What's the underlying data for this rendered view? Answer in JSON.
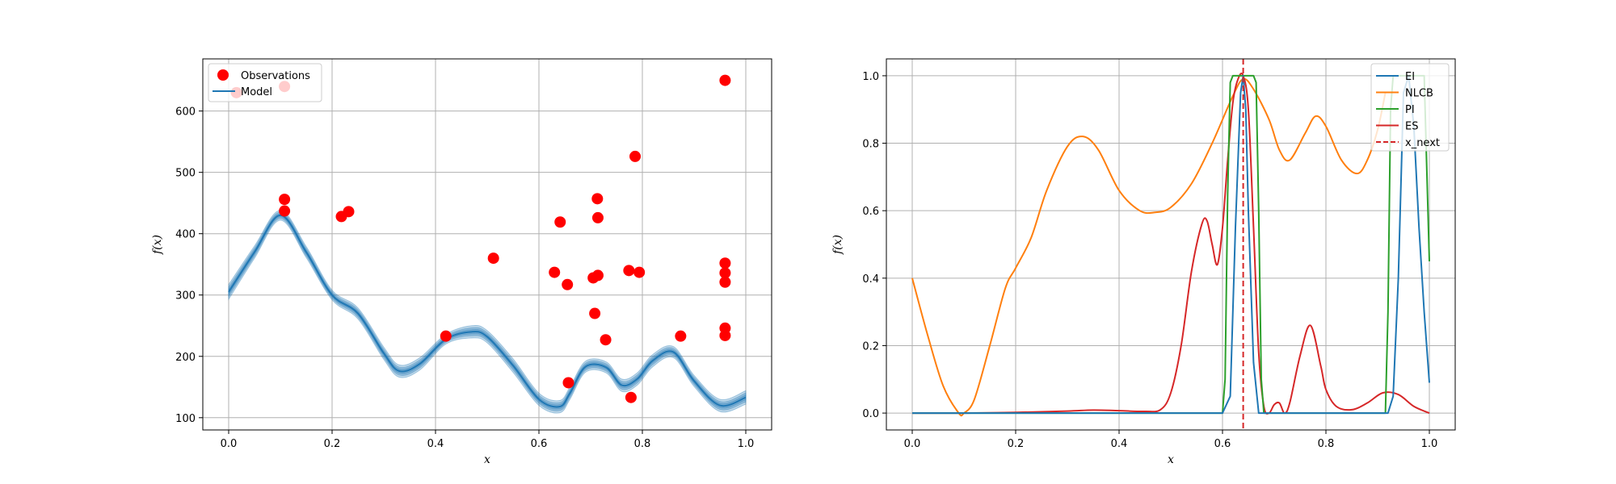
{
  "chart_data": [
    {
      "type": "scatter+line",
      "title": "",
      "xlabel": "x",
      "ylabel": "f(x)",
      "xlim": [
        -0.05,
        1.05
      ],
      "ylim": [
        80,
        685
      ],
      "xticks": [
        0.0,
        0.2,
        0.4,
        0.6,
        0.8,
        1.0
      ],
      "xtick_labels": [
        "0.0",
        "0.2",
        "0.4",
        "0.6",
        "0.8",
        "1.0"
      ],
      "yticks": [
        100,
        200,
        300,
        400,
        500,
        600
      ],
      "ytick_labels": [
        "100",
        "200",
        "300",
        "400",
        "500",
        "600"
      ],
      "grid": true,
      "legend_position": "upper-left",
      "colors": {
        "observations": "#ff0000",
        "model": "#1f77b4",
        "band": "#1f77b4"
      },
      "observations": {
        "name": "Observations",
        "x": [
          0.015,
          0.108,
          0.108,
          0.108,
          0.218,
          0.232,
          0.42,
          0.512,
          0.63,
          0.641,
          0.655,
          0.657,
          0.705,
          0.708,
          0.713,
          0.714,
          0.714,
          0.729,
          0.774,
          0.778,
          0.786,
          0.794,
          0.874,
          0.96,
          0.96,
          0.96,
          0.96,
          0.96,
          0.96
        ],
        "y": [
          630,
          640,
          456,
          437,
          428,
          436,
          233,
          360,
          337,
          419,
          317,
          157,
          328,
          270,
          457,
          332,
          426,
          227,
          340,
          133,
          526,
          337,
          233,
          352,
          336,
          321,
          246,
          234,
          650
        ]
      },
      "model": {
        "name": "Model",
        "x": [
          0.0,
          0.05,
          0.1,
          0.15,
          0.2,
          0.25,
          0.3,
          0.33,
          0.37,
          0.42,
          0.47,
          0.5,
          0.55,
          0.6,
          0.64,
          0.66,
          0.69,
          0.73,
          0.76,
          0.79,
          0.82,
          0.86,
          0.9,
          0.95,
          1.0
        ],
        "y": [
          305,
          370,
          430,
          370,
          300,
          270,
          205,
          176,
          188,
          228,
          240,
          232,
          185,
          130,
          118,
          140,
          183,
          182,
          153,
          163,
          193,
          207,
          160,
          120,
          133
        ],
        "band_widths": [
          12,
          10,
          8,
          9,
          8,
          9,
          10,
          10,
          10,
          8,
          10,
          10,
          11,
          10,
          10,
          10,
          9,
          9,
          10,
          10,
          10,
          9,
          9,
          10,
          11
        ]
      }
    },
    {
      "type": "line",
      "title": "",
      "xlabel": "x",
      "ylabel": "f(x)",
      "xlim": [
        -0.05,
        1.05
      ],
      "ylim": [
        -0.05,
        1.05
      ],
      "xticks": [
        0.0,
        0.2,
        0.4,
        0.6,
        0.8,
        1.0
      ],
      "xtick_labels": [
        "0.0",
        "0.2",
        "0.4",
        "0.6",
        "0.8",
        "1.0"
      ],
      "yticks": [
        0.0,
        0.2,
        0.4,
        0.6,
        0.8,
        1.0
      ],
      "ytick_labels": [
        "0.0",
        "0.2",
        "0.4",
        "0.6",
        "0.8",
        "1.0"
      ],
      "grid": true,
      "legend_position": "upper-right",
      "series": [
        {
          "name": "EI",
          "color": "#1f77b4",
          "x": [
            0.0,
            0.5,
            0.6,
            0.615,
            0.625,
            0.635,
            0.64,
            0.645,
            0.65,
            0.66,
            0.67,
            0.7,
            0.9,
            0.92,
            0.93,
            0.94,
            0.95,
            0.96,
            0.97,
            0.98,
            0.99,
            1.0
          ],
          "y": [
            0.0,
            0.0,
            0.0,
            0.05,
            0.55,
            0.95,
            1.0,
            0.9,
            0.6,
            0.15,
            0.0,
            0.0,
            0.0,
            0.0,
            0.05,
            0.4,
            0.95,
            1.0,
            0.85,
            0.55,
            0.3,
            0.09
          ]
        },
        {
          "name": "NLCB",
          "color": "#ff7f0e",
          "x": [
            0.0,
            0.03,
            0.06,
            0.09,
            0.1,
            0.12,
            0.15,
            0.18,
            0.2,
            0.23,
            0.26,
            0.3,
            0.33,
            0.36,
            0.4,
            0.44,
            0.47,
            0.5,
            0.54,
            0.58,
            0.62,
            0.64,
            0.66,
            0.69,
            0.71,
            0.73,
            0.76,
            0.78,
            0.8,
            0.83,
            0.86,
            0.88,
            0.9,
            0.915
          ],
          "y": [
            0.4,
            0.23,
            0.08,
            0.0,
            0.0,
            0.04,
            0.2,
            0.37,
            0.43,
            0.52,
            0.66,
            0.79,
            0.82,
            0.78,
            0.66,
            0.6,
            0.595,
            0.61,
            0.68,
            0.8,
            0.94,
            0.99,
            0.96,
            0.87,
            0.78,
            0.75,
            0.83,
            0.88,
            0.85,
            0.75,
            0.71,
            0.75,
            0.84,
            0.95
          ]
        },
        {
          "name": "PI",
          "color": "#2ca02c",
          "x": [
            0.0,
            0.5,
            0.6,
            0.605,
            0.61,
            0.615,
            0.62,
            0.66,
            0.665,
            0.67,
            0.675,
            0.68,
            0.9,
            0.915,
            0.92,
            0.925,
            0.93,
            0.99,
            1.0
          ],
          "y": [
            0.0,
            0.0,
            0.0,
            0.1,
            0.65,
            0.98,
            1.0,
            1.0,
            0.98,
            0.6,
            0.1,
            0.0,
            0.0,
            0.0,
            0.3,
            0.9,
            1.0,
            1.0,
            0.45
          ]
        },
        {
          "name": "ES",
          "color": "#d62728",
          "x": [
            0.0,
            0.05,
            0.1,
            0.2,
            0.3,
            0.35,
            0.4,
            0.45,
            0.48,
            0.5,
            0.52,
            0.54,
            0.56,
            0.57,
            0.58,
            0.59,
            0.6,
            0.61,
            0.62,
            0.63,
            0.64,
            0.65,
            0.66,
            0.67,
            0.68,
            0.69,
            0.7,
            0.71,
            0.72,
            0.73,
            0.75,
            0.77,
            0.79,
            0.8,
            0.82,
            0.85,
            0.88,
            0.91,
            0.94,
            0.97,
            1.0
          ],
          "y": [
            0.0,
            0.0,
            0.0,
            0.002,
            0.006,
            0.009,
            0.007,
            0.005,
            0.01,
            0.06,
            0.2,
            0.42,
            0.56,
            0.57,
            0.5,
            0.44,
            0.55,
            0.75,
            0.92,
            0.99,
            1.0,
            0.9,
            0.55,
            0.18,
            0.02,
            0.0,
            0.025,
            0.03,
            0.0,
            0.03,
            0.17,
            0.26,
            0.14,
            0.07,
            0.02,
            0.01,
            0.03,
            0.06,
            0.055,
            0.02,
            0.0
          ]
        },
        {
          "name": "x_next",
          "color": "#d62728",
          "style": "dashed",
          "vertical_x": 0.64
        }
      ]
    }
  ]
}
